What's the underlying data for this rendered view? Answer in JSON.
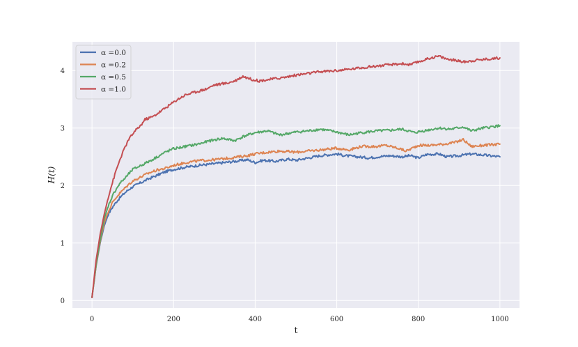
{
  "chart_data": {
    "type": "line",
    "title": "",
    "xlabel": "t",
    "ylabel": "H(t)",
    "xlim": [
      -48,
      1048
    ],
    "ylim": [
      -0.13,
      4.5
    ],
    "xticks": [
      0,
      200,
      400,
      600,
      800,
      1000
    ],
    "yticks": [
      0,
      1,
      2,
      3,
      4
    ],
    "grid": true,
    "legend_position": "top-left",
    "colors": {
      "background": "#eaeaf2",
      "grid": "#ffffff"
    },
    "series": [
      {
        "name": "α =0.0",
        "legend_label": "α =0.0",
        "color": "#4c72b0",
        "points": [
          [
            0,
            0.05
          ],
          [
            10,
            0.6
          ],
          [
            20,
            1.0
          ],
          [
            30,
            1.3
          ],
          [
            40,
            1.5
          ],
          [
            50,
            1.62
          ],
          [
            60,
            1.72
          ],
          [
            70,
            1.8
          ],
          [
            80,
            1.87
          ],
          [
            90,
            1.93
          ],
          [
            100,
            1.98
          ],
          [
            120,
            2.05
          ],
          [
            140,
            2.12
          ],
          [
            160,
            2.18
          ],
          [
            180,
            2.24
          ],
          [
            200,
            2.28
          ],
          [
            230,
            2.32
          ],
          [
            260,
            2.35
          ],
          [
            300,
            2.38
          ],
          [
            350,
            2.42
          ],
          [
            380,
            2.45
          ],
          [
            400,
            2.4
          ],
          [
            420,
            2.44
          ],
          [
            450,
            2.42
          ],
          [
            480,
            2.46
          ],
          [
            500,
            2.44
          ],
          [
            530,
            2.48
          ],
          [
            560,
            2.52
          ],
          [
            600,
            2.55
          ],
          [
            620,
            2.52
          ],
          [
            650,
            2.5
          ],
          [
            680,
            2.48
          ],
          [
            700,
            2.5
          ],
          [
            730,
            2.52
          ],
          [
            760,
            2.5
          ],
          [
            780,
            2.52
          ],
          [
            800,
            2.48
          ],
          [
            820,
            2.54
          ],
          [
            850,
            2.55
          ],
          [
            870,
            2.5
          ],
          [
            900,
            2.52
          ],
          [
            930,
            2.55
          ],
          [
            960,
            2.53
          ],
          [
            1000,
            2.5
          ]
        ]
      },
      {
        "name": "α =0.2",
        "legend_label": "α =0.2",
        "color": "#dd8452",
        "points": [
          [
            0,
            0.05
          ],
          [
            10,
            0.6
          ],
          [
            20,
            1.02
          ],
          [
            30,
            1.35
          ],
          [
            40,
            1.55
          ],
          [
            50,
            1.7
          ],
          [
            60,
            1.8
          ],
          [
            70,
            1.88
          ],
          [
            80,
            1.95
          ],
          [
            90,
            2.02
          ],
          [
            100,
            2.08
          ],
          [
            120,
            2.15
          ],
          [
            140,
            2.22
          ],
          [
            160,
            2.27
          ],
          [
            180,
            2.3
          ],
          [
            200,
            2.35
          ],
          [
            230,
            2.4
          ],
          [
            260,
            2.43
          ],
          [
            300,
            2.45
          ],
          [
            340,
            2.48
          ],
          [
            380,
            2.52
          ],
          [
            400,
            2.55
          ],
          [
            430,
            2.58
          ],
          [
            460,
            2.6
          ],
          [
            500,
            2.58
          ],
          [
            530,
            2.6
          ],
          [
            560,
            2.62
          ],
          [
            600,
            2.65
          ],
          [
            630,
            2.62
          ],
          [
            660,
            2.68
          ],
          [
            700,
            2.68
          ],
          [
            720,
            2.7
          ],
          [
            750,
            2.65
          ],
          [
            770,
            2.6
          ],
          [
            800,
            2.7
          ],
          [
            830,
            2.7
          ],
          [
            860,
            2.72
          ],
          [
            890,
            2.75
          ],
          [
            910,
            2.8
          ],
          [
            930,
            2.68
          ],
          [
            960,
            2.7
          ],
          [
            1000,
            2.72
          ]
        ]
      },
      {
        "name": "α =0.5",
        "legend_label": "α =0.5",
        "color": "#55a868",
        "points": [
          [
            0,
            0.05
          ],
          [
            10,
            0.62
          ],
          [
            20,
            1.05
          ],
          [
            30,
            1.42
          ],
          [
            40,
            1.65
          ],
          [
            50,
            1.82
          ],
          [
            60,
            1.95
          ],
          [
            70,
            2.05
          ],
          [
            80,
            2.12
          ],
          [
            90,
            2.2
          ],
          [
            100,
            2.28
          ],
          [
            120,
            2.35
          ],
          [
            140,
            2.42
          ],
          [
            160,
            2.5
          ],
          [
            180,
            2.58
          ],
          [
            200,
            2.64
          ],
          [
            230,
            2.68
          ],
          [
            260,
            2.72
          ],
          [
            290,
            2.78
          ],
          [
            320,
            2.82
          ],
          [
            350,
            2.78
          ],
          [
            370,
            2.85
          ],
          [
            400,
            2.92
          ],
          [
            430,
            2.95
          ],
          [
            460,
            2.88
          ],
          [
            500,
            2.93
          ],
          [
            530,
            2.95
          ],
          [
            560,
            2.98
          ],
          [
            600,
            2.93
          ],
          [
            630,
            2.88
          ],
          [
            660,
            2.92
          ],
          [
            700,
            2.95
          ],
          [
            730,
            2.96
          ],
          [
            760,
            2.98
          ],
          [
            790,
            2.92
          ],
          [
            820,
            2.96
          ],
          [
            850,
            3.0
          ],
          [
            880,
            2.98
          ],
          [
            910,
            3.02
          ],
          [
            930,
            2.95
          ],
          [
            960,
            3.0
          ],
          [
            1000,
            3.04
          ]
        ]
      },
      {
        "name": "α =1.0",
        "legend_label": "α =1.0",
        "color": "#c44e52",
        "points": [
          [
            0,
            0.05
          ],
          [
            10,
            0.7
          ],
          [
            20,
            1.15
          ],
          [
            30,
            1.5
          ],
          [
            40,
            1.8
          ],
          [
            50,
            2.05
          ],
          [
            60,
            2.28
          ],
          [
            70,
            2.48
          ],
          [
            80,
            2.65
          ],
          [
            90,
            2.8
          ],
          [
            100,
            2.9
          ],
          [
            110,
            2.98
          ],
          [
            120,
            3.05
          ],
          [
            130,
            3.15
          ],
          [
            150,
            3.2
          ],
          [
            170,
            3.3
          ],
          [
            190,
            3.4
          ],
          [
            210,
            3.5
          ],
          [
            230,
            3.58
          ],
          [
            250,
            3.62
          ],
          [
            280,
            3.68
          ],
          [
            300,
            3.75
          ],
          [
            330,
            3.78
          ],
          [
            350,
            3.82
          ],
          [
            370,
            3.9
          ],
          [
            390,
            3.85
          ],
          [
            410,
            3.82
          ],
          [
            440,
            3.85
          ],
          [
            470,
            3.88
          ],
          [
            500,
            3.92
          ],
          [
            530,
            3.95
          ],
          [
            560,
            3.98
          ],
          [
            600,
            4.0
          ],
          [
            630,
            4.02
          ],
          [
            660,
            4.05
          ],
          [
            700,
            4.08
          ],
          [
            730,
            4.1
          ],
          [
            760,
            4.12
          ],
          [
            780,
            4.1
          ],
          [
            800,
            4.15
          ],
          [
            830,
            4.22
          ],
          [
            850,
            4.25
          ],
          [
            870,
            4.2
          ],
          [
            890,
            4.18
          ],
          [
            910,
            4.15
          ],
          [
            940,
            4.18
          ],
          [
            970,
            4.2
          ],
          [
            1000,
            4.22
          ]
        ]
      }
    ]
  }
}
